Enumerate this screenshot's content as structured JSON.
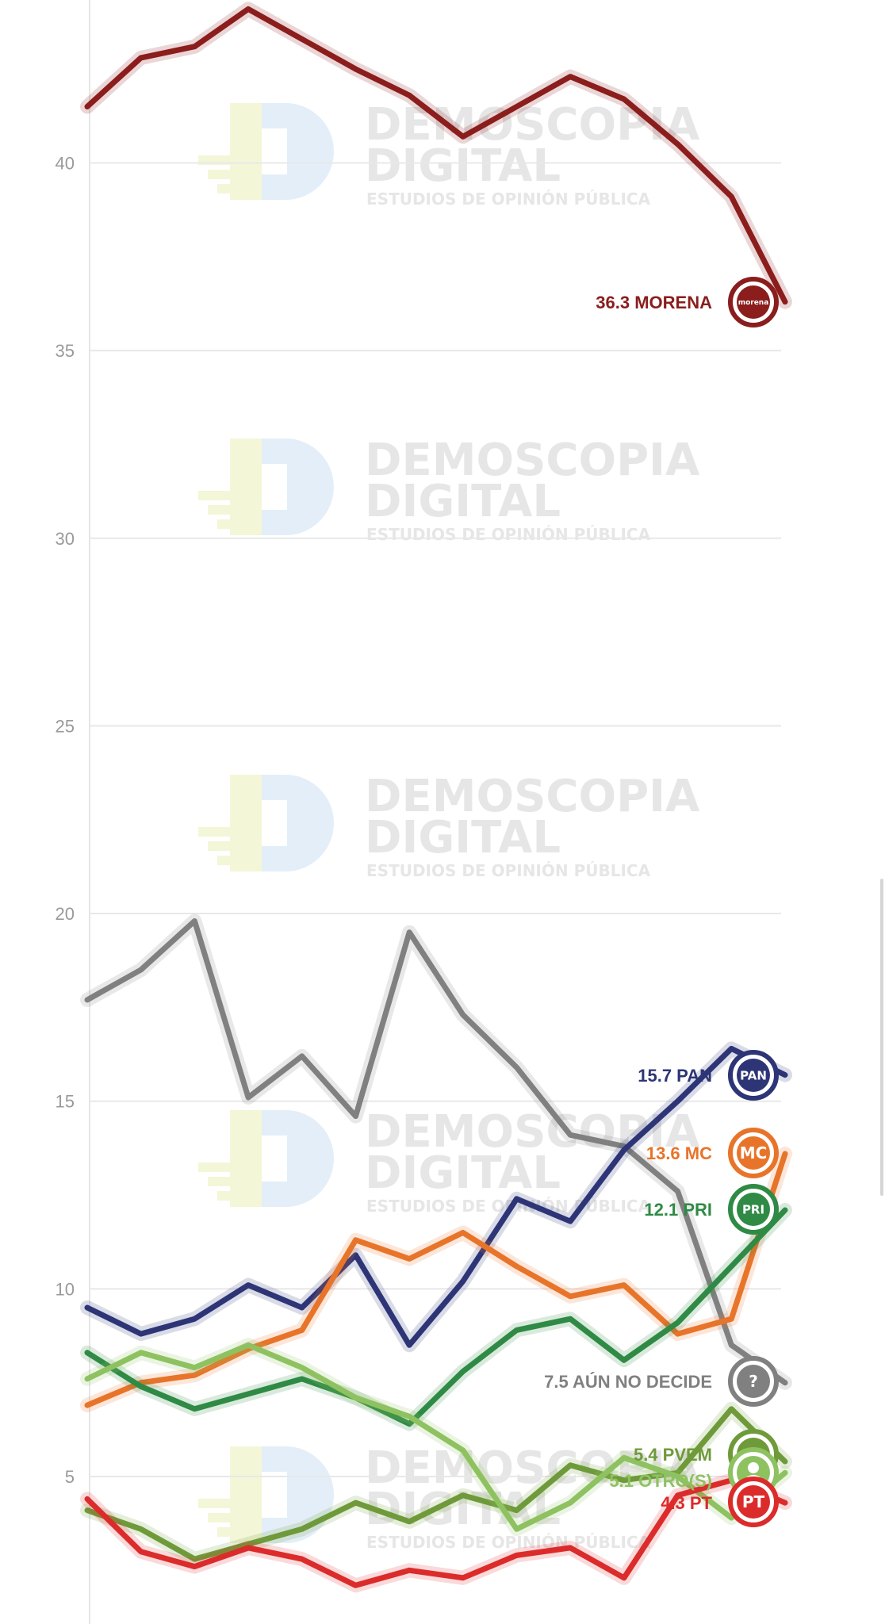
{
  "watermark": {
    "line1": "DEMOSCOPIA",
    "line2": "DIGITAL",
    "line3": "ESTUDIOS DE OPINIÓN PÚBLICA"
  },
  "chart_data": {
    "type": "line",
    "title": "",
    "xlabel": "",
    "ylabel": "",
    "ylim": [
      1,
      44
    ],
    "y_ticks": [
      "5",
      "10",
      "15",
      "20",
      "25",
      "30",
      "35",
      "40"
    ],
    "grid": true,
    "legend": "end-labels-right",
    "series": [
      {
        "name": "MORENA",
        "label": "36.3 MORENA",
        "color": "#8b1d1d",
        "badge": "morena",
        "badge_icon": "morena-logo-icon",
        "values": [
          41.5,
          42.8,
          43.1,
          44.1,
          43.3,
          42.5,
          41.8,
          40.7,
          41.5,
          42.3,
          41.7,
          40.5,
          39.1,
          36.3
        ]
      },
      {
        "name": "AÚN NO DECIDE",
        "label": "7.5 AÚN NO DECIDE",
        "color": "#808080",
        "badge": "?",
        "badge_icon": "question-icon",
        "values": [
          17.7,
          18.5,
          19.8,
          15.1,
          16.2,
          14.6,
          19.5,
          17.3,
          15.9,
          14.1,
          13.8,
          12.6,
          8.5,
          7.5
        ]
      },
      {
        "name": "PAN",
        "label": "15.7 PAN",
        "color": "#2d3576",
        "badge": "PAN",
        "badge_icon": "pan-logo-icon",
        "values": [
          9.5,
          8.8,
          9.2,
          10.1,
          9.5,
          10.9,
          8.5,
          10.2,
          12.4,
          11.8,
          13.7,
          15.0,
          16.4,
          15.7
        ]
      },
      {
        "name": "MC",
        "label": "13.6 MC",
        "color": "#e8742a",
        "badge": "MC",
        "badge_icon": "mc-logo-icon",
        "values": [
          6.9,
          7.5,
          7.7,
          8.4,
          8.9,
          11.3,
          10.8,
          11.5,
          10.6,
          9.8,
          10.1,
          8.8,
          9.2,
          13.6
        ]
      },
      {
        "name": "PRI",
        "label": "12.1 PRI",
        "color": "#2f8a45",
        "badge": "PRI",
        "badge_icon": "pri-logo-icon",
        "values": [
          8.3,
          7.4,
          6.8,
          7.2,
          7.6,
          7.1,
          6.4,
          7.8,
          8.9,
          9.2,
          8.1,
          9.1,
          10.6,
          12.1
        ]
      },
      {
        "name": "PVEM",
        "label": "5.4 PVEM",
        "color": "#6f9a3a",
        "badge": "",
        "badge_icon": "pvem-logo-icon",
        "values": [
          4.1,
          3.6,
          2.8,
          3.2,
          3.6,
          4.3,
          3.8,
          4.5,
          4.1,
          5.3,
          4.9,
          5.1,
          6.8,
          5.4
        ]
      },
      {
        "name": "OTRO(S)",
        "label": "5.1 OTRO(S)",
        "color": "#8ec261",
        "badge": "",
        "badge_icon": "person-icon",
        "values": [
          7.6,
          8.3,
          7.9,
          8.5,
          7.9,
          7.1,
          6.6,
          5.7,
          3.6,
          4.3,
          5.5,
          5.0,
          3.9,
          5.1
        ]
      },
      {
        "name": "PT",
        "label": "4.3 PT",
        "color": "#dc2b2b",
        "badge": "PT",
        "badge_icon": "pt-logo-icon",
        "values": [
          4.4,
          3.0,
          2.6,
          3.1,
          2.8,
          2.1,
          2.5,
          2.3,
          2.9,
          3.1,
          2.3,
          4.5,
          4.9,
          4.3
        ]
      }
    ]
  }
}
